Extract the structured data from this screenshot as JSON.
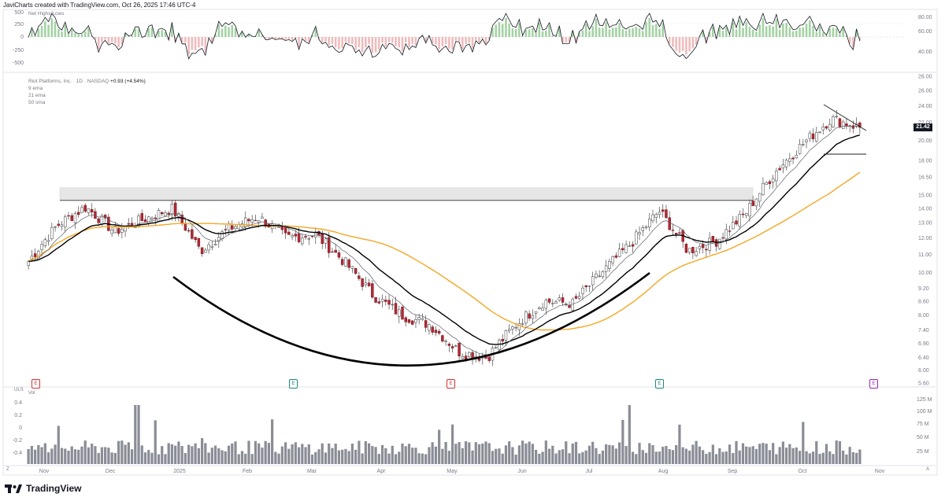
{
  "header": {
    "text": "JaviCharts created with TradingView.com, Oct 26, 2025 17:46 UTC-4"
  },
  "indicator_top": {
    "name": "Net Highs/Lows",
    "left_ticks": [
      "500",
      "250",
      "0",
      "-250",
      "-500"
    ],
    "right_ticks": [
      "80.00",
      "60.00",
      "40.00"
    ]
  },
  "main_legend": {
    "symbol_line": "Riot Platforms, Inc. · 1D · NASDAQ",
    "change": "+0.93 (+4.54%)",
    "ma1": "9 ema",
    "ma2": "21 ema",
    "ma3": "50 sma"
  },
  "price_axis": [
    "28.00",
    "26.00",
    "24.00",
    "22.00",
    "20.00",
    "18.00",
    "16.50",
    "15.00",
    "14.00",
    "13.00",
    "12.00",
    "11.00",
    "10.00",
    "9.20",
    "8.60",
    "8.00",
    "7.40",
    "6.90",
    "6.40",
    "6.00",
    "5.60"
  ],
  "current_price_tag": "21.42",
  "volume_panel": {
    "label": "Vol",
    "left_label": "ULS",
    "left_ticks": [
      "0.4",
      "0.2",
      "0",
      "-0.2",
      "-0.4"
    ],
    "right_ticks": [
      "125 M",
      "100 M",
      "75 M",
      "50 M",
      "25 M"
    ]
  },
  "time_axis": [
    "Nov",
    "Dec",
    "2025",
    "Feb",
    "Mar",
    "Apr",
    "May",
    "Jun",
    "Jul",
    "Aug",
    "Sep",
    "Oct",
    "Nov"
  ],
  "corner": {
    "left": "Z",
    "right": "A"
  },
  "events": [
    "E",
    "E",
    "E",
    "E",
    "E"
  ],
  "brand": {
    "name": "TradingView"
  },
  "colors": {
    "up": "#ffffff",
    "down": "#b22833",
    "wick": "#4a4a4a",
    "ema9": "#5d606b",
    "ema21": "#000000",
    "sma50": "#f5a623",
    "volume": "#8a8d96",
    "band": "#e6e6e6",
    "hist_up": "#7fbf7f",
    "hist_down": "#e8a0a0",
    "event_red": "#d32f2f",
    "event_teal": "#1b8a7a",
    "event_purple": "#a020c0"
  },
  "chart_data": {
    "type": "candlestick",
    "symbol": "Riot Platforms, Inc.",
    "interval": "1D",
    "ylim": [
      5.6,
      28
    ],
    "y_scale": "log",
    "x_range": [
      "Nov",
      "Nov"
    ],
    "resistance_level": 14.6,
    "last_price": 21.42,
    "approx_closes": [
      {
        "x": "Nov",
        "close": 10.6
      },
      {
        "x": "Nov",
        "close": 12.8
      },
      {
        "x": "Nov",
        "close": 14.1
      },
      {
        "x": "Dec",
        "close": 12.4
      },
      {
        "x": "Dec",
        "close": 13.2
      },
      {
        "x": "Dec",
        "close": 14.0
      },
      {
        "x": "2025",
        "close": 11.2
      },
      {
        "x": "2025",
        "close": 12.6
      },
      {
        "x": "2025",
        "close": 13.4
      },
      {
        "x": "Feb",
        "close": 12.0
      },
      {
        "x": "Feb",
        "close": 12.2
      },
      {
        "x": "Mar",
        "close": 10.6
      },
      {
        "x": "Mar",
        "close": 8.9
      },
      {
        "x": "Mar",
        "close": 8.0
      },
      {
        "x": "Apr",
        "close": 7.6
      },
      {
        "x": "Apr",
        "close": 6.6
      },
      {
        "x": "Apr",
        "close": 6.4
      },
      {
        "x": "May",
        "close": 7.6
      },
      {
        "x": "May",
        "close": 8.6
      },
      {
        "x": "Jun",
        "close": 8.5
      },
      {
        "x": "Jun",
        "close": 10.0
      },
      {
        "x": "Jul",
        "close": 11.6
      },
      {
        "x": "Jul",
        "close": 13.8
      },
      {
        "x": "Aug",
        "close": 11.2
      },
      {
        "x": "Aug",
        "close": 11.8
      },
      {
        "x": "Sep",
        "close": 13.6
      },
      {
        "x": "Sep",
        "close": 16.8
      },
      {
        "x": "Oct",
        "close": 19.6
      },
      {
        "x": "Oct",
        "close": 22.4
      },
      {
        "x": "Oct",
        "close": 21.42
      }
    ],
    "series": [
      {
        "name": "9 ema"
      },
      {
        "name": "21 ema"
      },
      {
        "name": "50 sma"
      }
    ]
  }
}
